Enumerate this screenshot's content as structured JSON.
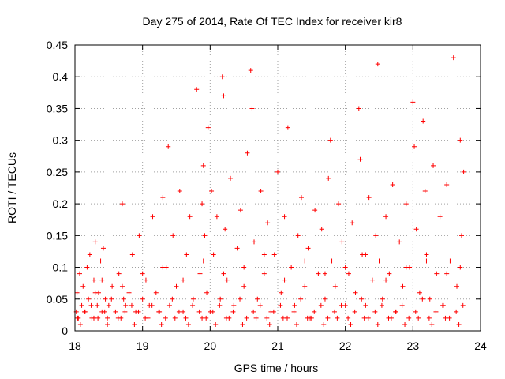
{
  "chart_data": {
    "type": "scatter",
    "title": "Day 275 of 2014, Rate Of TEC Index for receiver kir8",
    "xlabel": "GPS time / hours",
    "ylabel": "ROTI / TECUs",
    "xlim": [
      18,
      24
    ],
    "ylim": [
      0,
      0.45
    ],
    "x_ticks": [
      18,
      19,
      20,
      21,
      22,
      23,
      24
    ],
    "x_tick_labels": [
      "18",
      "19",
      "20",
      "21",
      "22",
      "23",
      "24"
    ],
    "y_ticks": [
      0,
      0.05,
      0.1,
      0.15,
      0.2,
      0.25,
      0.3,
      0.35,
      0.4,
      0.45
    ],
    "y_tick_labels": [
      "0",
      "0.05",
      "0.1",
      "0.15",
      "0.2",
      "0.25",
      "0.3",
      "0.35",
      "0.4",
      "0.45"
    ],
    "grid": true,
    "marker": "+",
    "color": "#ff0000",
    "series": [
      {
        "name": "ROTI",
        "x": [
          18.02,
          18.03,
          18.05,
          18.07,
          18.1,
          18.12,
          18.15,
          18.18,
          18.2,
          18.22,
          18.25,
          18.28,
          18.3,
          18.33,
          18.35,
          18.38,
          18.4,
          18.42,
          18.45,
          18.48,
          18.5,
          18.55,
          18.6,
          18.65,
          18.7,
          18.72,
          18.75,
          18.8,
          18.85,
          18.9,
          18.95,
          19.0,
          19.05,
          19.1,
          19.15,
          19.2,
          19.25,
          19.3,
          19.35,
          19.38,
          19.4,
          19.45,
          19.5,
          19.55,
          19.6,
          19.65,
          19.7,
          19.75,
          19.8,
          19.85,
          19.88,
          19.9,
          19.92,
          19.95,
          19.97,
          20.0,
          20.02,
          20.05,
          20.1,
          20.15,
          20.18,
          20.2,
          20.22,
          20.25,
          20.3,
          20.35,
          20.4,
          20.45,
          20.5,
          20.55,
          20.6,
          20.62,
          20.65,
          20.7,
          20.75,
          20.8,
          20.85,
          20.9,
          20.95,
          21.0,
          21.05,
          21.1,
          21.15,
          21.2,
          21.25,
          21.3,
          21.35,
          21.4,
          21.45,
          21.5,
          21.55,
          21.6,
          21.65,
          21.7,
          21.75,
          21.78,
          21.8,
          21.85,
          21.9,
          21.95,
          22.0,
          22.05,
          22.1,
          22.15,
          22.2,
          22.22,
          22.25,
          22.3,
          22.35,
          22.4,
          22.45,
          22.48,
          22.5,
          22.55,
          22.6,
          22.65,
          22.7,
          22.75,
          22.8,
          22.85,
          22.9,
          22.95,
          23.0,
          23.02,
          23.05,
          23.1,
          23.15,
          23.18,
          23.2,
          23.25,
          23.3,
          23.35,
          23.4,
          23.45,
          23.5,
          23.55,
          23.6,
          23.65,
          23.7,
          23.72,
          23.75,
          18.04,
          18.14,
          18.24,
          18.34,
          18.44,
          18.54,
          18.64,
          18.74,
          18.84,
          18.94,
          19.04,
          19.14,
          19.24,
          19.34,
          19.44,
          19.54,
          19.64,
          19.74,
          19.84,
          19.94,
          20.04,
          20.14,
          20.24,
          20.34,
          20.44,
          20.54,
          20.64,
          20.74,
          20.84,
          20.94,
          21.04,
          21.14,
          21.24,
          21.34,
          21.44,
          21.54,
          21.64,
          21.74,
          21.84,
          21.94,
          22.04,
          22.14,
          22.24,
          22.34,
          22.44,
          22.54,
          22.64,
          22.74,
          22.84,
          22.94,
          23.04,
          23.14,
          23.24,
          23.34,
          23.44,
          23.54,
          23.64,
          23.74,
          18.08,
          18.28,
          18.48,
          18.68,
          18.88,
          19.08,
          19.28,
          19.48,
          19.68,
          19.88,
          20.08,
          20.28,
          20.48,
          20.68,
          20.88,
          21.08,
          21.28,
          21.48,
          21.68,
          21.88,
          22.08,
          22.28,
          22.48,
          22.68,
          22.88,
          23.08,
          23.28,
          23.48,
          23.68,
          18.3,
          18.4,
          18.7,
          19.0,
          19.3,
          19.6,
          19.9,
          20.2,
          20.5,
          20.8,
          21.1,
          21.4,
          21.7,
          22.0,
          22.3,
          22.6,
          22.9,
          23.2,
          23.5,
          23.7
        ],
        "y": [
          0.03,
          0.06,
          0.02,
          0.09,
          0.04,
          0.07,
          0.03,
          0.1,
          0.05,
          0.12,
          0.02,
          0.08,
          0.14,
          0.04,
          0.06,
          0.11,
          0.03,
          0.13,
          0.05,
          0.02,
          0.04,
          0.07,
          0.03,
          0.09,
          0.2,
          0.05,
          0.04,
          0.06,
          0.12,
          0.03,
          0.15,
          0.05,
          0.08,
          0.04,
          0.18,
          0.06,
          0.03,
          0.21,
          0.1,
          0.29,
          0.04,
          0.15,
          0.07,
          0.22,
          0.03,
          0.12,
          0.18,
          0.05,
          0.38,
          0.09,
          0.2,
          0.26,
          0.15,
          0.06,
          0.32,
          0.03,
          0.22,
          0.12,
          0.18,
          0.05,
          0.4,
          0.37,
          0.16,
          0.08,
          0.24,
          0.04,
          0.13,
          0.19,
          0.07,
          0.28,
          0.41,
          0.35,
          0.14,
          0.05,
          0.22,
          0.09,
          0.17,
          0.03,
          0.12,
          0.25,
          0.06,
          0.18,
          0.32,
          0.1,
          0.04,
          0.15,
          0.21,
          0.07,
          0.13,
          0.02,
          0.19,
          0.09,
          0.16,
          0.05,
          0.24,
          0.3,
          0.11,
          0.07,
          0.2,
          0.14,
          0.04,
          0.09,
          0.17,
          0.06,
          0.35,
          0.27,
          0.12,
          0.04,
          0.21,
          0.08,
          0.15,
          0.42,
          0.11,
          0.05,
          0.18,
          0.09,
          0.23,
          0.03,
          0.14,
          0.07,
          0.2,
          0.1,
          0.36,
          0.29,
          0.16,
          0.06,
          0.33,
          0.22,
          0.12,
          0.05,
          0.26,
          0.09,
          0.18,
          0.04,
          0.23,
          0.11,
          0.43,
          0.07,
          0.3,
          0.15,
          0.25,
          0.02,
          0.03,
          0.04,
          0.02,
          0.03,
          0.05,
          0.02,
          0.03,
          0.04,
          0.03,
          0.02,
          0.04,
          0.03,
          0.02,
          0.05,
          0.03,
          0.02,
          0.04,
          0.03,
          0.02,
          0.03,
          0.04,
          0.02,
          0.03,
          0.05,
          0.02,
          0.03,
          0.04,
          0.02,
          0.03,
          0.04,
          0.02,
          0.03,
          0.05,
          0.02,
          0.03,
          0.04,
          0.02,
          0.03,
          0.04,
          0.02,
          0.03,
          0.05,
          0.02,
          0.03,
          0.04,
          0.02,
          0.03,
          0.04,
          0.02,
          0.03,
          0.05,
          0.02,
          0.03,
          0.04,
          0.02,
          0.03,
          0.04,
          0.01,
          0.02,
          0.01,
          0.02,
          0.01,
          0.02,
          0.01,
          0.02,
          0.01,
          0.02,
          0.01,
          0.02,
          0.01,
          0.02,
          0.01,
          0.02,
          0.01,
          0.02,
          0.01,
          0.02,
          0.01,
          0.02,
          0.01,
          0.02,
          0.01,
          0.02,
          0.01,
          0.02,
          0.01,
          0.06,
          0.08,
          0.07,
          0.09,
          0.1,
          0.08,
          0.11,
          0.09,
          0.1,
          0.12,
          0.08,
          0.11,
          0.09,
          0.1,
          0.12,
          0.08,
          0.1,
          0.11,
          0.09,
          0.1
        ]
      }
    ]
  }
}
